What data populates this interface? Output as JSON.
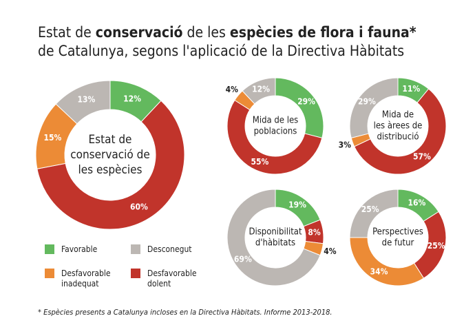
{
  "header": {
    "title_lines": [
      [
        {
          "text": "Estat de ",
          "bold": false
        },
        {
          "text": "conservació",
          "bold": true
        },
        {
          "text": " de les ",
          "bold": false
        },
        {
          "text": "espècies de flora i fauna*",
          "bold": true
        }
      ],
      [
        {
          "text": "de Catalunya, segons l'aplicació de la Directiva Hàbitats",
          "bold": false
        }
      ]
    ]
  },
  "legend": {
    "labels": [
      "Favorable",
      "Desfavorable dolent",
      "Desfavorable inadequat",
      "Desconegut"
    ],
    "colors": [
      "#63b95e",
      "#c1342b",
      "#ec8b36",
      "#bcb7b3"
    ]
  },
  "chart_data": [
    {
      "type": "pie",
      "title": [
        "Estat de",
        "conservació de",
        "les espècies"
      ],
      "values": [
        12,
        60,
        15,
        13
      ],
      "value_labels": [
        "12%",
        "60%",
        "15%",
        "13%"
      ]
    },
    {
      "type": "pie",
      "title": [
        "Mida de les",
        "poblacions"
      ],
      "values": [
        29,
        55,
        4,
        12
      ],
      "value_labels": [
        "29%",
        "55%",
        "4%",
        "12%"
      ]
    },
    {
      "type": "pie",
      "title": [
        "Mida de",
        "les àrees de",
        "distribució"
      ],
      "values": [
        11,
        57,
        3,
        29
      ],
      "value_labels": [
        "11%",
        "57%",
        "3%",
        "29%"
      ]
    },
    {
      "type": "pie",
      "title": [
        "Disponibilitat",
        "d'hàbitats"
      ],
      "values": [
        19,
        8,
        4,
        69
      ],
      "value_labels": [
        "19%",
        "8%",
        "4%",
        "69%"
      ]
    },
    {
      "type": "pie",
      "title": [
        "Perspectives",
        "de futur"
      ],
      "values": [
        16,
        25,
        34,
        25
      ],
      "value_labels": [
        "16%",
        "25%",
        "34%",
        "25%"
      ]
    }
  ],
  "footnote": "* Espècies presents a Catalunya incloses en la Directiva Hàbitats. Informe 2013-2018."
}
